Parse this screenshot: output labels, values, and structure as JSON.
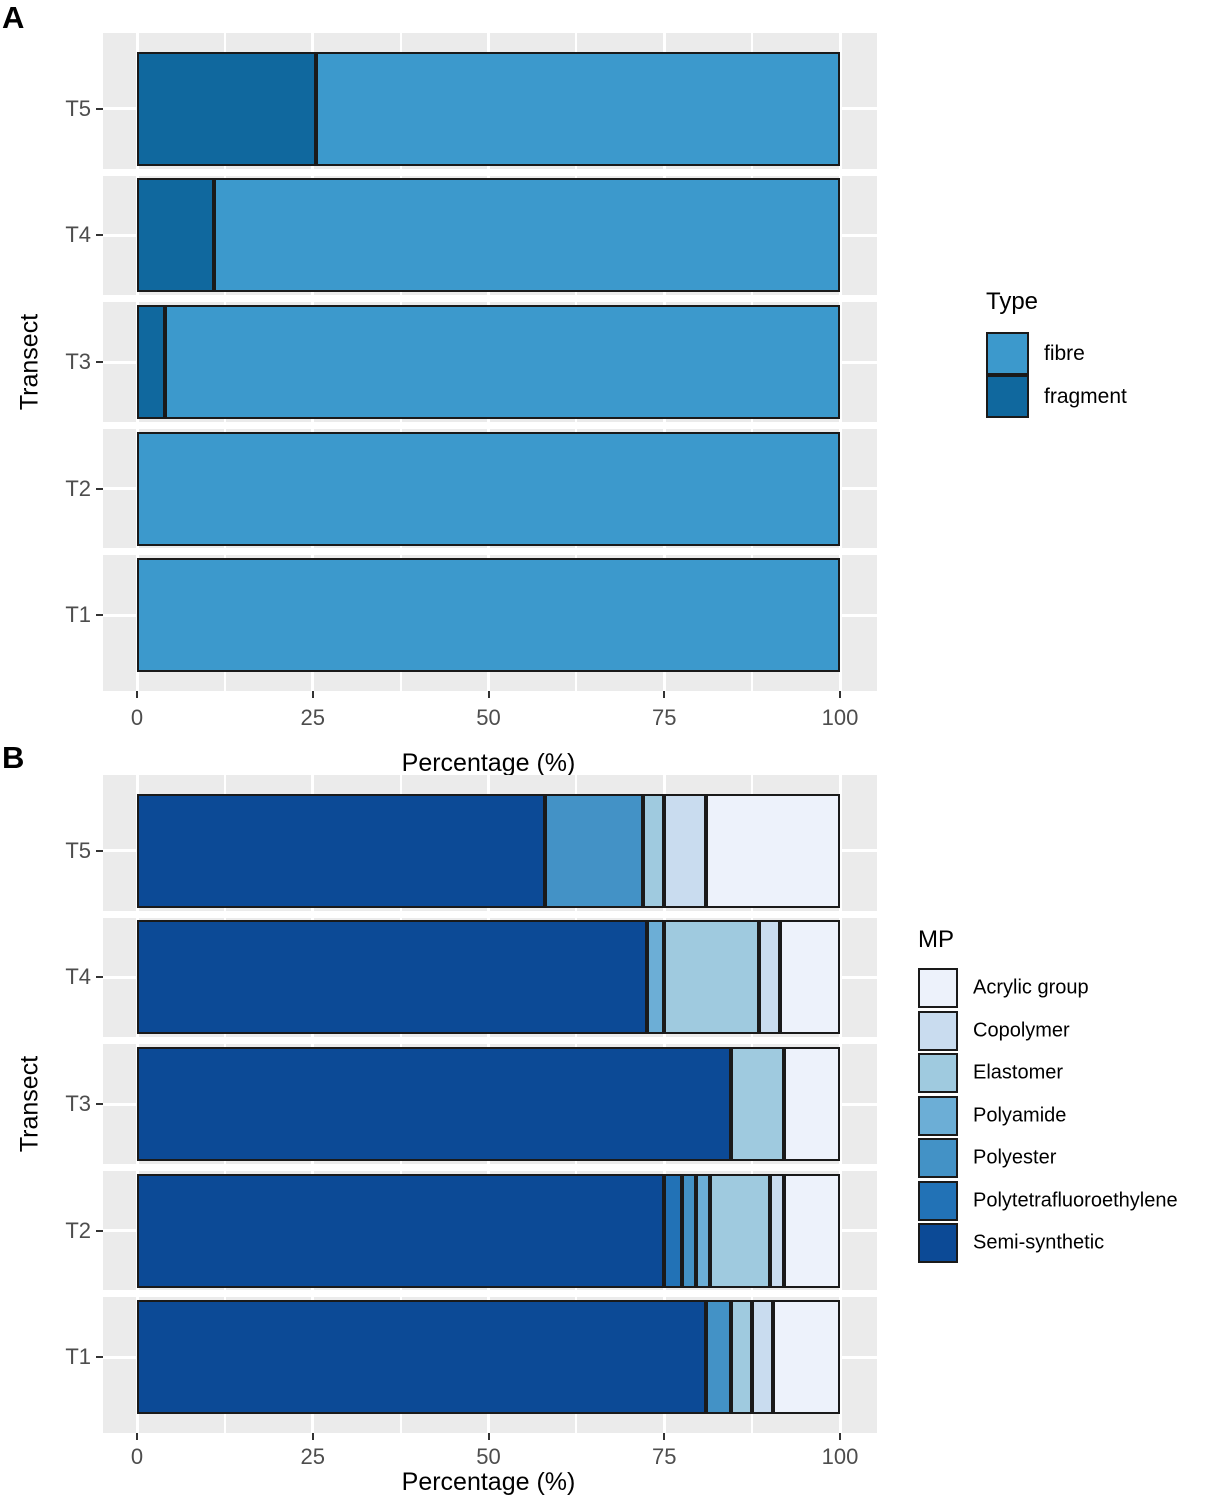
{
  "panels": [
    {
      "letter": "A"
    },
    {
      "letter": "B"
    }
  ],
  "colors": {
    "panel_background": "#EBEBEB",
    "grid": "#FFFFFF",
    "bar_border": "#1A1A1A",
    "axis_text": "#4D4D4D",
    "tick": "#333333"
  },
  "chart_data": [
    {
      "id": "A",
      "type": "bar",
      "orientation": "horizontal-stacked",
      "categories": [
        "T5",
        "T4",
        "T3",
        "T2",
        "T1"
      ],
      "xlabel": "Percentage (%)",
      "ylabel": "Transect",
      "xlim": [
        0,
        100
      ],
      "xticks": [
        0,
        25,
        50,
        75,
        100
      ],
      "xticks_minor": [
        12.5,
        37.5,
        62.5,
        87.5
      ],
      "grid": true,
      "legend_title": "Type",
      "legend_position": "right",
      "legend_order": [
        {
          "name": "fibre",
          "color": "#3C99CC"
        },
        {
          "name": "fragment",
          "color": "#10689E"
        }
      ],
      "series": [
        {
          "name": "fragment",
          "color": "#10689E",
          "values": [
            25.5,
            11,
            4,
            0,
            0
          ]
        },
        {
          "name": "fibre",
          "color": "#3C99CC",
          "values": [
            74.5,
            89,
            96,
            100,
            100
          ]
        }
      ]
    },
    {
      "id": "B",
      "type": "bar",
      "orientation": "horizontal-stacked",
      "categories": [
        "T5",
        "T4",
        "T3",
        "T2",
        "T1"
      ],
      "xlabel": "Percentage (%)",
      "ylabel": "Transect",
      "xlim": [
        0,
        100
      ],
      "xticks": [
        0,
        25,
        50,
        75,
        100
      ],
      "xticks_minor": [
        12.5,
        37.5,
        62.5,
        87.5
      ],
      "grid": true,
      "legend_title": "MP",
      "legend_position": "right",
      "legend_order": [
        {
          "name": "Acrylic group",
          "color": "#EDF2FB"
        },
        {
          "name": "Copolymer",
          "color": "#C9DCEF"
        },
        {
          "name": "Elastomer",
          "color": "#9FCADF"
        },
        {
          "name": "Polyamide",
          "color": "#6CAED6"
        },
        {
          "name": "Polyester",
          "color": "#4392C6"
        },
        {
          "name": "Polytetrafluoroethylene",
          "color": "#2272B6"
        },
        {
          "name": "Semi-synthetic",
          "color": "#0C4A96"
        }
      ],
      "series": [
        {
          "name": "Semi-synthetic",
          "color": "#0C4A96",
          "values": [
            58,
            72.5,
            84.5,
            75,
            81
          ]
        },
        {
          "name": "Polytetrafluoroethylene",
          "color": "#2272B6",
          "values": [
            0,
            0,
            0,
            2.5,
            0
          ]
        },
        {
          "name": "Polyester",
          "color": "#4392C6",
          "values": [
            14,
            0,
            0,
            2,
            3.5
          ]
        },
        {
          "name": "Polyamide",
          "color": "#6CAED6",
          "values": [
            0,
            2.5,
            0,
            2,
            0
          ]
        },
        {
          "name": "Elastomer",
          "color": "#9FCADF",
          "values": [
            3,
            13.5,
            7.5,
            8.5,
            3
          ]
        },
        {
          "name": "Copolymer",
          "color": "#C9DCEF",
          "values": [
            6,
            3,
            0,
            2,
            3
          ]
        },
        {
          "name": "Acrylic group",
          "color": "#EDF2FB",
          "values": [
            19,
            8.5,
            8,
            8,
            9.5
          ]
        }
      ]
    }
  ]
}
